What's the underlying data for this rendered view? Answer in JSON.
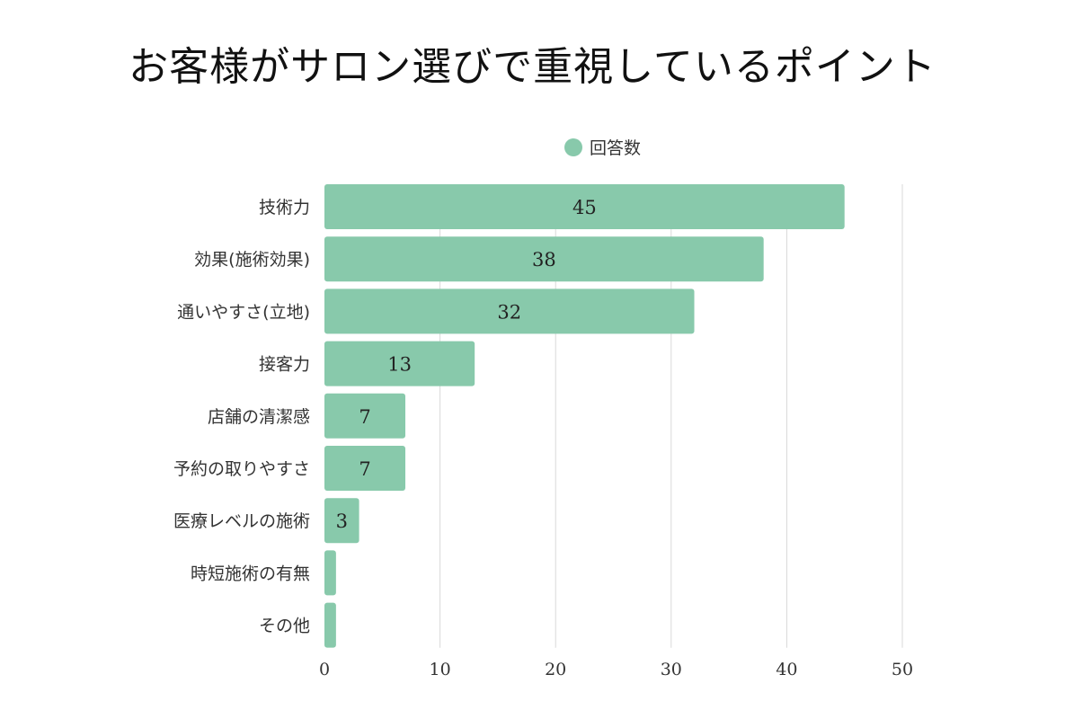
{
  "chart_data": {
    "type": "bar",
    "orientation": "horizontal",
    "title": "お客様がサロン選びで重視しているポイント",
    "categories": [
      "技術力",
      "効果(施術効果)",
      "通いやすさ(立地)",
      "接客力",
      "店舗の清潔感",
      "予約の取りやすさ",
      "医療レベルの施術",
      "時短施術の有無",
      "その他"
    ],
    "series": [
      {
        "name": "回答数",
        "values": [
          45,
          38,
          32,
          13,
          7,
          7,
          3,
          1,
          1
        ]
      }
    ],
    "data_labels": [
      "45",
      "38",
      "32",
      "13",
      "7",
      "7",
      "3",
      "",
      ""
    ],
    "xlim": [
      0,
      50
    ],
    "xticks": [
      0,
      10,
      20,
      30,
      40,
      50
    ],
    "xtick_labels": [
      "0",
      "10",
      "20",
      "30",
      "40",
      "50"
    ],
    "grid": "vertical",
    "legend": "top-center",
    "colors": {
      "bar": "#88c9ab",
      "grid": "#d9d9d9"
    }
  }
}
